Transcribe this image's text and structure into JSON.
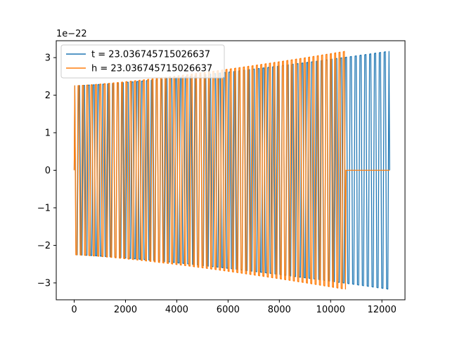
{
  "chart_data": {
    "type": "line",
    "title": "",
    "xlabel": "",
    "ylabel": "",
    "y_offset_label": "1e−22",
    "xlim": [
      -700,
      12900
    ],
    "ylim": [
      -3.45,
      3.45
    ],
    "x_ticks": [
      0,
      2000,
      4000,
      6000,
      8000,
      10000,
      12000
    ],
    "x_tick_labels": [
      "0",
      "2000",
      "4000",
      "6000",
      "8000",
      "10000",
      "12000"
    ],
    "y_ticks": [
      -3,
      -2,
      -1,
      0,
      1,
      2,
      3
    ],
    "y_tick_labels": [
      "−3",
      "−2",
      "−1",
      "0",
      "1",
      "2",
      "3"
    ],
    "grid": false,
    "legend_position": "upper-left",
    "series": [
      {
        "name": "t = 23.036745715026637",
        "color": "#1f77b4",
        "x_range": [
          0,
          12300
        ],
        "amplitude_start": 2.25,
        "amplitude_end": 3.17,
        "oscillation_count": 130
      },
      {
        "name": "h = 23.036745715026637",
        "color": "#ff7f0e",
        "x_range": [
          0,
          10600
        ],
        "amplitude_start": 2.25,
        "amplitude_end": 3.17,
        "oscillation_count": 125,
        "zero_after": 10600,
        "zero_until": 12300
      }
    ]
  }
}
